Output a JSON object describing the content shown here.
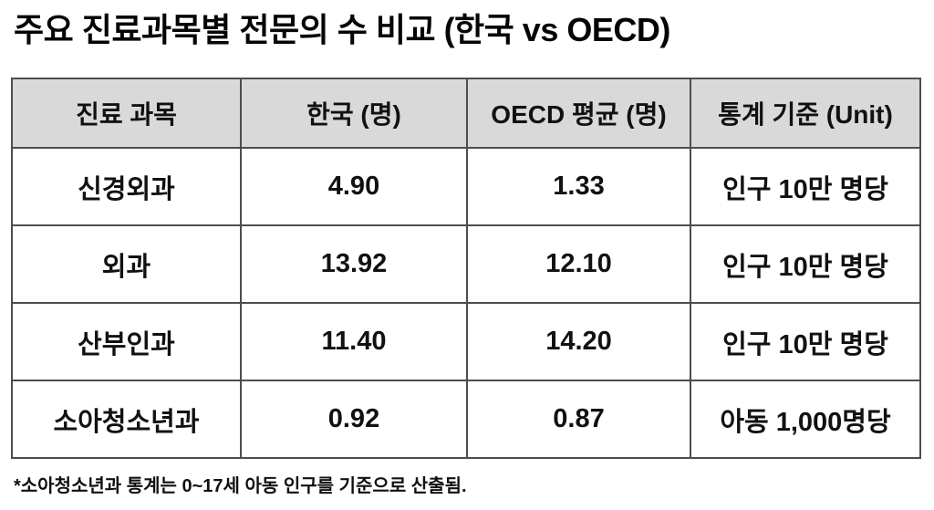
{
  "page": {
    "title": "주요 진료과목별 전문의 수 비교 (한국 vs OECD)",
    "footnote": "*소아청소년과 통계는 0~17세 아동 인구를 기준으로 산출됨."
  },
  "table": {
    "headers": {
      "specialty": "진료 과목",
      "korea": "한국 (명)",
      "oecd": "OECD 평균 (명)",
      "unit": "통계 기준 (Unit)"
    },
    "rows": [
      {
        "specialty": "신경외과",
        "korea": "4.90",
        "oecd": "1.33",
        "unit": "인구 10만 명당"
      },
      {
        "specialty": "외과",
        "korea": "13.92",
        "oecd": "12.10",
        "unit": "인구 10만 명당"
      },
      {
        "specialty": "산부인과",
        "korea": "11.40",
        "oecd": "14.20",
        "unit": "인구 10만 명당"
      },
      {
        "specialty": "소아청소년과",
        "korea": "0.92",
        "oecd": "0.87",
        "unit": "아동 1,000명당"
      }
    ]
  },
  "colors": {
    "background": "#ffffff",
    "header_bg": "#d9d9d9",
    "border": "#4d4d4d",
    "text": "#111111"
  }
}
